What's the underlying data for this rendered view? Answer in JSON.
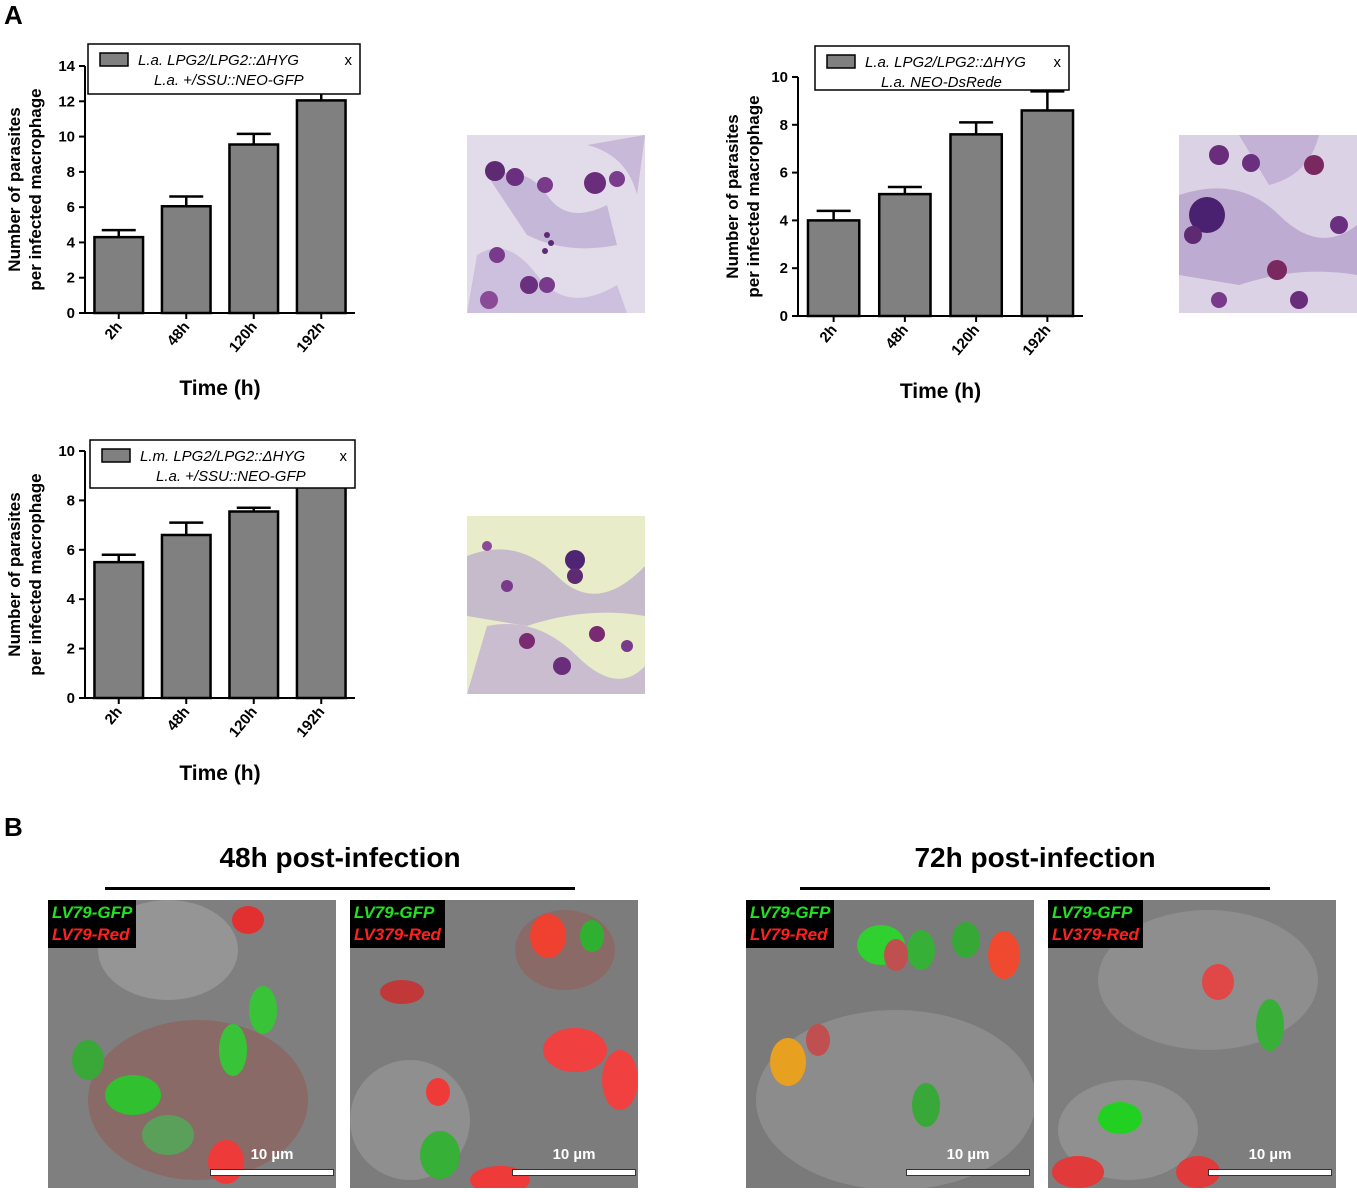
{
  "panel_labels": {
    "a": "A",
    "b": "B"
  },
  "chart_data": [
    {
      "type": "bar",
      "categories": [
        "2h",
        "48h",
        "120h",
        "192h"
      ],
      "values": [
        4.3,
        6.05,
        9.55,
        12.05
      ],
      "errors": [
        0.4,
        0.55,
        0.6,
        0.5
      ],
      "ylim": [
        0,
        14
      ],
      "yticks": [
        0,
        2,
        4,
        6,
        8,
        10,
        12,
        14
      ],
      "xlabel": "Time (h)",
      "ylabel_line1": "Number of parasites",
      "ylabel_line2": "per infected macrophage",
      "legend_line1": "L.a. LPG2/LPG2::ΔHYG",
      "legend_x": "x",
      "legend_line2": "L.a. +/SSU::NEO-GFP",
      "bar_color": "#808080"
    },
    {
      "type": "bar",
      "categories": [
        "2h",
        "48h",
        "120h",
        "192h"
      ],
      "values": [
        4.0,
        5.1,
        7.6,
        8.6
      ],
      "errors": [
        0.4,
        0.3,
        0.5,
        0.8
      ],
      "ylim": [
        0,
        10
      ],
      "yticks": [
        0,
        2,
        4,
        6,
        8,
        10
      ],
      "xlabel": "Time (h)",
      "ylabel_line1": "Number of parasites",
      "ylabel_line2": "per infected macrophage",
      "legend_line1": "L.a. LPG2/LPG2::ΔHYG",
      "legend_x": "x",
      "legend_line2": "L.a. NEO-DsRede",
      "bar_color": "#808080"
    },
    {
      "type": "bar",
      "categories": [
        "2h",
        "48h",
        "120h",
        "192h"
      ],
      "values": [
        5.5,
        6.6,
        7.55,
        8.95
      ],
      "errors": [
        0.3,
        0.5,
        0.15,
        0.3
      ],
      "ylim": [
        0,
        10
      ],
      "yticks": [
        0,
        2,
        4,
        6,
        8,
        10
      ],
      "xlabel": "Time (h)",
      "ylabel_line1": "Number of parasites",
      "ylabel_line2": "per infected macrophage",
      "legend_line1": "L.m. LPG2/LPG2::ΔHYG",
      "legend_x": "x",
      "legend_line2": "L.a. +/SSU::NEO-GFP",
      "bar_color": "#808080"
    }
  ],
  "panel_b": {
    "titles": [
      "48h post-infection",
      "72h post-infection"
    ],
    "images": [
      {
        "green_label": "LV79-GFP",
        "red_label": "LV79-Red",
        "scale": "10 µm"
      },
      {
        "green_label": "LV79-GFP",
        "red_label": "LV379-Red",
        "scale": "10 µm"
      },
      {
        "green_label": "LV79-GFP",
        "red_label": "LV79-Red",
        "scale": "10 µm"
      },
      {
        "green_label": "LV79-GFP",
        "red_label": "LV379-Red",
        "scale": "10 µm"
      }
    ]
  }
}
